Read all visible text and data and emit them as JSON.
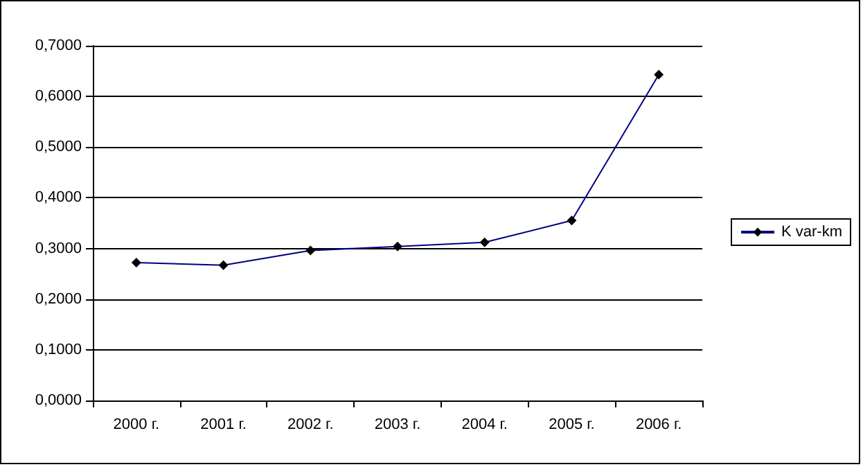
{
  "chart_data": {
    "type": "line",
    "categories": [
      "2000 г.",
      "2001 г.",
      "2002 г.",
      "2003 г.",
      "2004 г.",
      "2005 г.",
      "2006 г."
    ],
    "series": [
      {
        "name": "K var-km",
        "color": "#000080",
        "values": [
          0.272,
          0.267,
          0.296,
          0.304,
          0.312,
          0.355,
          0.643
        ]
      }
    ],
    "ylim": [
      0,
      0.7
    ],
    "yticks": [
      {
        "value": 0,
        "label": "0,0000"
      },
      {
        "value": 0.1,
        "label": "0,1000"
      },
      {
        "value": 0.2,
        "label": "0,2000"
      },
      {
        "value": 0.3,
        "label": "0,3000"
      },
      {
        "value": 0.4,
        "label": "0,4000"
      },
      {
        "value": 0.5,
        "label": "0,5000"
      },
      {
        "value": 0.6,
        "label": "0,6000"
      },
      {
        "value": 0.7,
        "label": "0,7000"
      }
    ],
    "grid": "y",
    "legend": "right",
    "marker": "diamond",
    "line_style": "solid"
  }
}
